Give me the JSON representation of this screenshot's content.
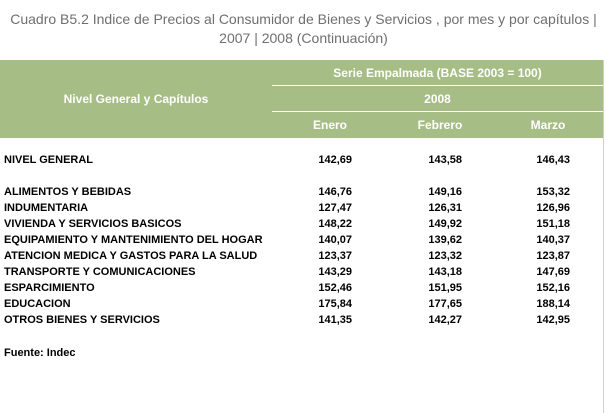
{
  "title": "Cuadro B5.2 Indice de Precios al Consumidor de Bienes y Servicios , por mes y por capítulos | 2007 | 2008 (Continuación)",
  "header": {
    "nivel": "Nivel General y Capítulos",
    "serie": "Serie Empalmada (BASE 2003 = 100)",
    "year": "2008",
    "months": [
      "Enero",
      "Febrero",
      "Marzo"
    ]
  },
  "general": {
    "label": "NIVEL GENERAL",
    "values": [
      "142,69",
      "143,58",
      "146,43"
    ]
  },
  "rows": [
    {
      "label": "ALIMENTOS Y BEBIDAS",
      "values": [
        "146,76",
        "149,16",
        "153,32"
      ]
    },
    {
      "label": "INDUMENTARIA",
      "values": [
        "127,47",
        "126,31",
        "126,96"
      ]
    },
    {
      "label": "VIVIENDA Y SERVICIOS BASICOS",
      "values": [
        "148,22",
        "149,92",
        "151,18"
      ]
    },
    {
      "label": "EQUIPAMIENTO Y MANTENIMIENTO DEL HOGAR",
      "values": [
        "140,07",
        "139,62",
        "140,37"
      ]
    },
    {
      "label": "ATENCION MEDICA Y GASTOS PARA LA SALUD",
      "values": [
        "123,37",
        "123,32",
        "123,87"
      ]
    },
    {
      "label": "TRANSPORTE Y COMUNICACIONES",
      "values": [
        "143,29",
        "143,18",
        "147,69"
      ]
    },
    {
      "label": "ESPARCIMIENTO",
      "values": [
        "152,46",
        "151,95",
        "152,16"
      ]
    },
    {
      "label": "EDUCACION",
      "values": [
        "175,84",
        "177,65",
        "188,14"
      ]
    },
    {
      "label": "OTROS BIENES Y SERVICIOS",
      "values": [
        "141,35",
        "142,27",
        "142,95"
      ]
    }
  ],
  "source": "Fuente: Indec",
  "colors": {
    "header_bg": "#a7bd86",
    "title": "#6f6f6f"
  }
}
